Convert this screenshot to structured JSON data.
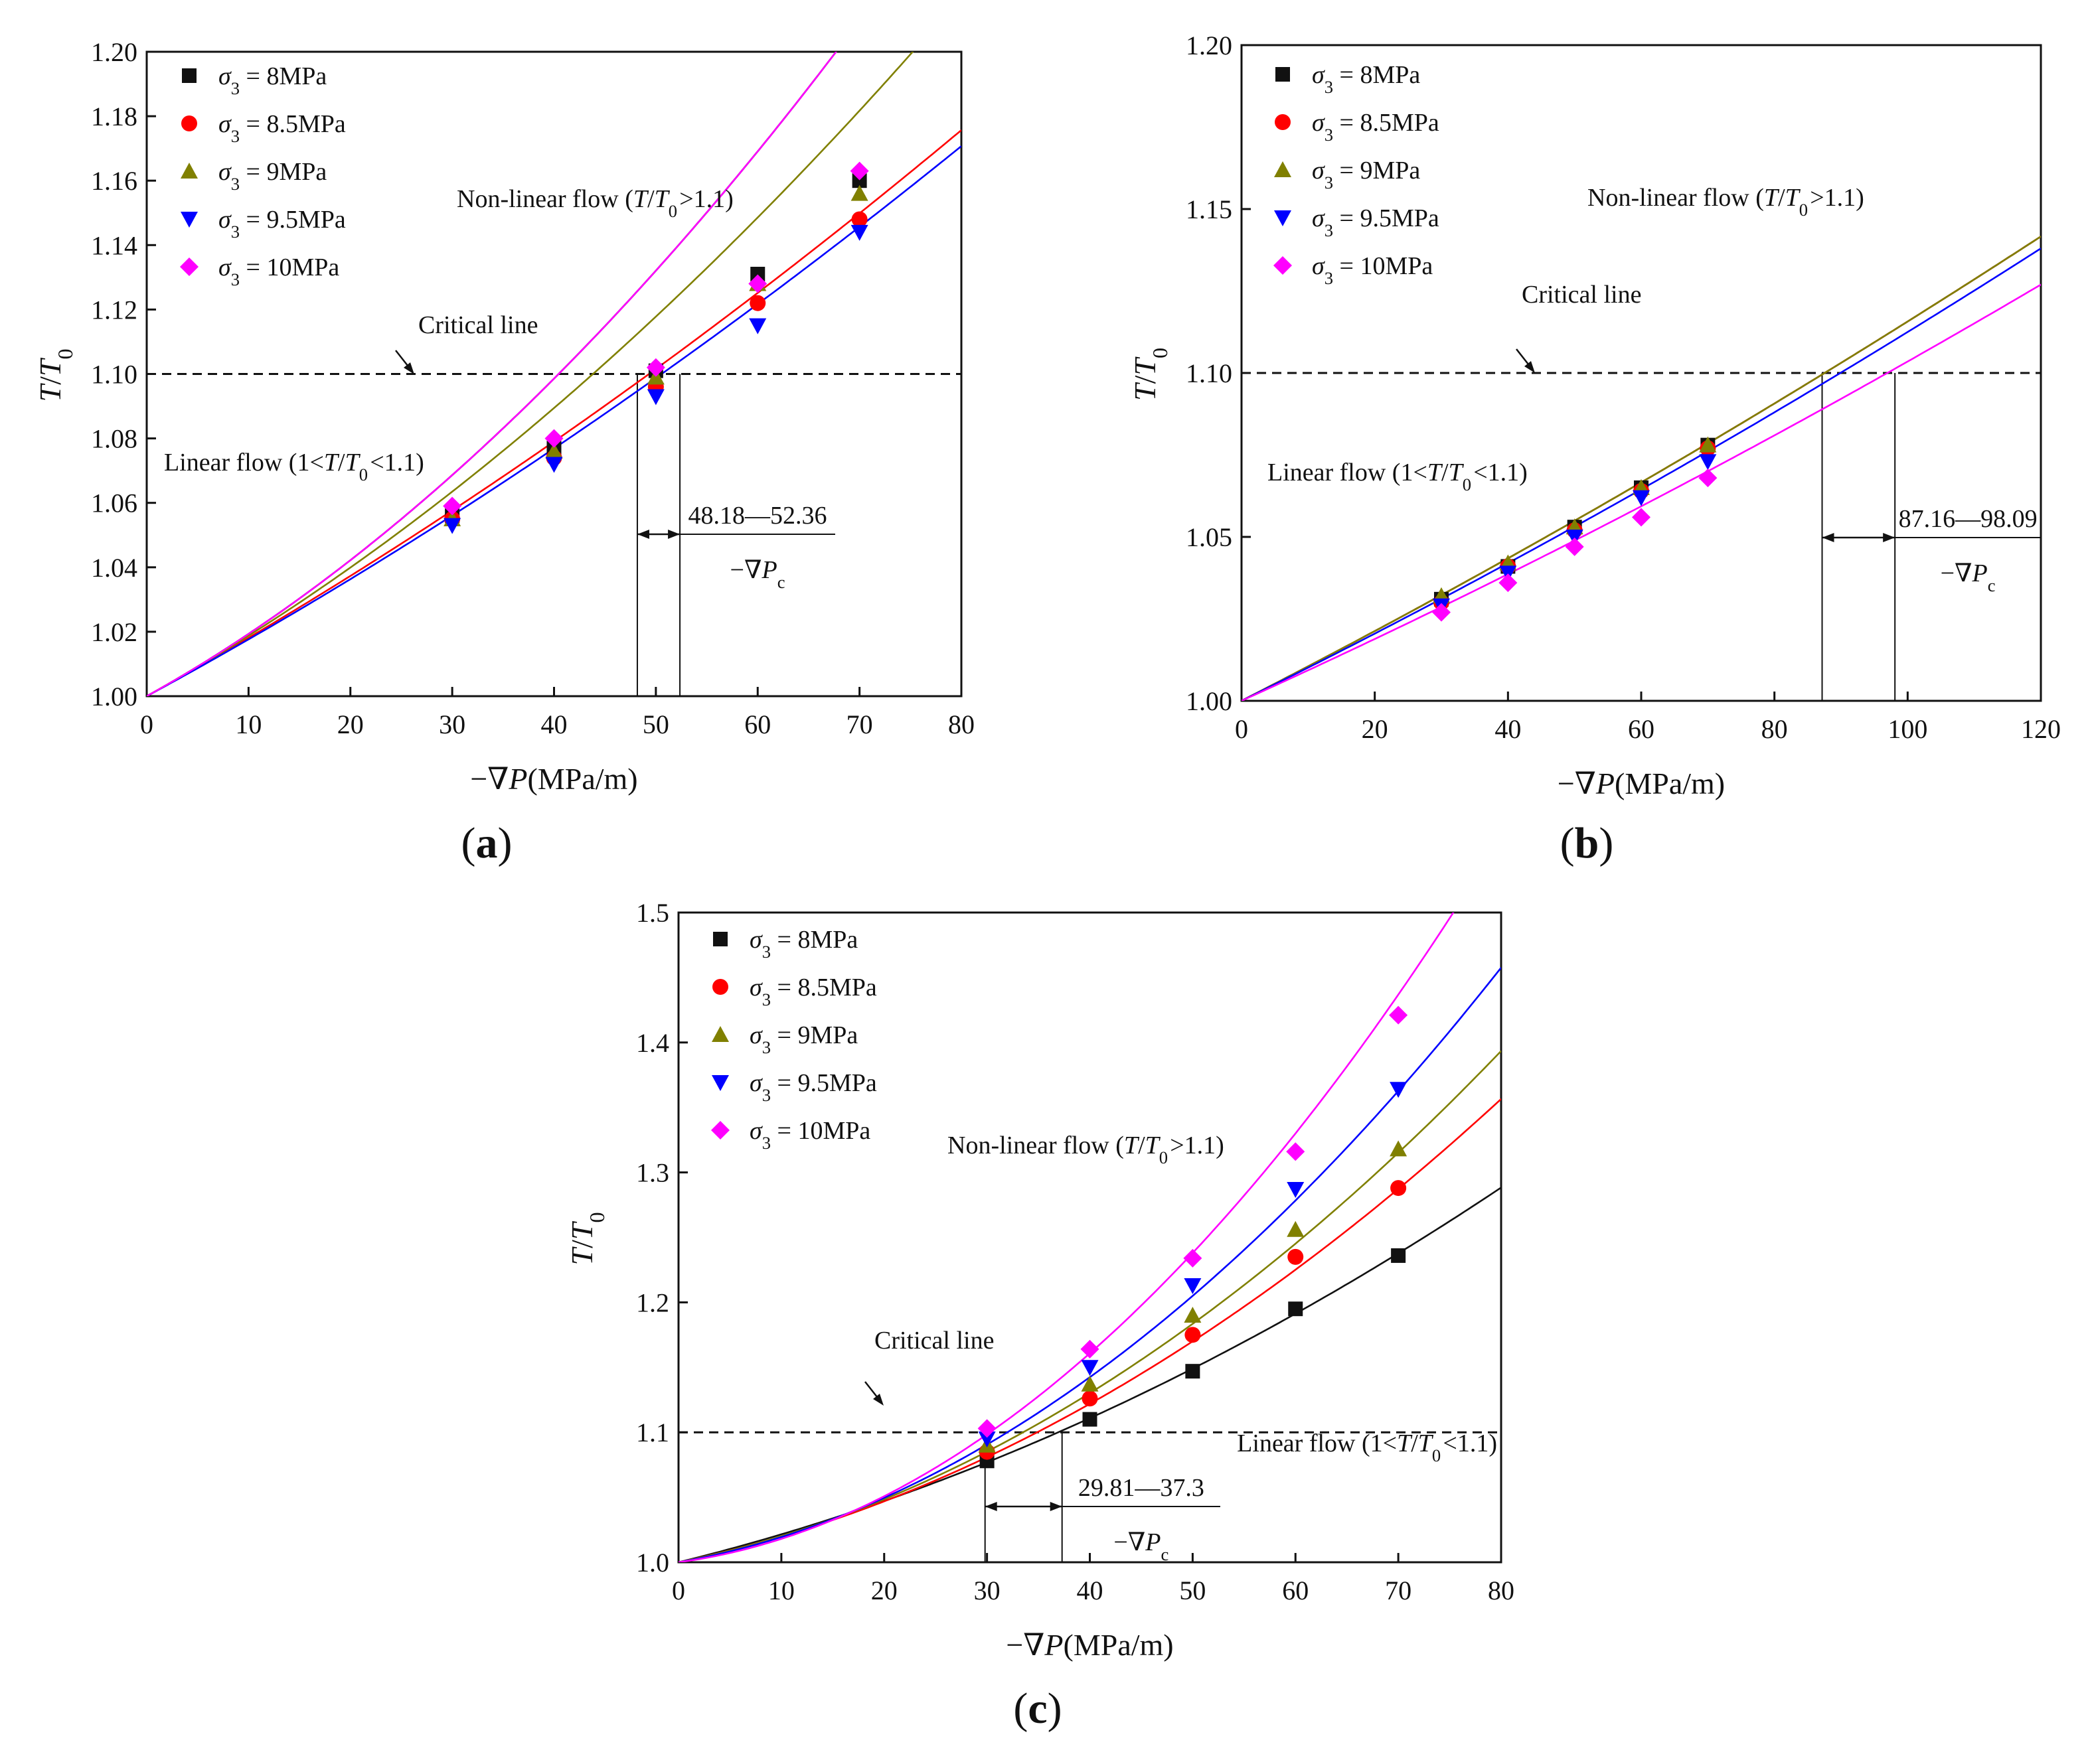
{
  "chart_data": [
    {
      "type": "scatter",
      "panel_label": "(a)",
      "xlabel": "−∇P(MPa/m)",
      "ylabel": "T/T0",
      "xlim": [
        0,
        80
      ],
      "ylim": [
        1.0,
        1.2
      ],
      "x_ticks": [
        "0",
        "10",
        "20",
        "30",
        "40",
        "50",
        "60",
        "70",
        "80"
      ],
      "y_ticks": [
        "1.00",
        "1.02",
        "1.04",
        "1.06",
        "1.08",
        "1.10",
        "1.12",
        "1.14",
        "1.16",
        "1.18",
        "1.20"
      ],
      "x_tick_values": [
        0,
        10,
        20,
        30,
        40,
        50,
        60,
        70,
        80
      ],
      "y_tick_values": [
        1.0,
        1.02,
        1.04,
        1.06,
        1.08,
        1.1,
        1.12,
        1.14,
        1.16,
        1.18,
        1.2
      ],
      "x": [
        30,
        40,
        50,
        60,
        70
      ],
      "series": [
        {
          "name": "σ3 = 8MPa",
          "legend_value": "= 8MPa",
          "marker": "square",
          "color": "#111111",
          "values": [
            1.056,
            1.077,
            1.101,
            1.131,
            1.16
          ],
          "fit_a": 0.001756,
          "fit_b": 1.77e-05
        },
        {
          "name": "σ3 = 8.5MPa",
          "legend_value": "= 8.5MPa",
          "marker": "circle",
          "color": "#ff0000",
          "values": [
            1.055,
            1.074,
            1.096,
            1.122,
            1.148
          ],
          "fit_a": 0.001756,
          "fit_b": 5.5e-06
        },
        {
          "name": "σ3 = 9MPa",
          "legend_value": "= 9MPa",
          "marker": "triangle-up",
          "color": "#808000",
          "values": [
            1.055,
            1.076,
            1.099,
            1.128,
            1.156
          ],
          "fit_a": 0.001756,
          "fit_b": 1.2e-05
        },
        {
          "name": "σ3 = 9.5MPa",
          "legend_value": "= 9.5MPa",
          "marker": "triangle-down",
          "color": "#0000ff",
          "values": [
            1.053,
            1.072,
            1.093,
            1.115,
            1.144
          ],
          "fit_a": 0.00171,
          "fit_b": 5.3e-06
        },
        {
          "name": "σ3 = 10MPa",
          "legend_value": "= 10MPa",
          "marker": "diamond",
          "color": "#ff00ff",
          "values": [
            1.059,
            1.08,
            1.102,
            1.128,
            1.163
          ],
          "fit_a": 0.001756,
          "fit_b": 1.77e-05
        }
      ],
      "critical_y": 1.1,
      "critical_x": [
        48.18,
        52.36
      ],
      "annotations": {
        "critical_line": "Critical line",
        "nonlinear": "Non-linear flow (T/T0>1.1)",
        "linear": "Linear flow (1<T/T0<1.1)",
        "range": "48.18—52.36",
        "grad": "−∇Pc"
      }
    },
    {
      "type": "scatter",
      "panel_label": "(b)",
      "xlabel": "−∇P(MPa/m)",
      "ylabel": "T/T0",
      "xlim": [
        0,
        120
      ],
      "ylim": [
        1.0,
        1.2
      ],
      "x_ticks": [
        "0",
        "20",
        "40",
        "60",
        "80",
        "100",
        "120"
      ],
      "y_ticks": [
        "1.00",
        "1.05",
        "1.10",
        "1.15",
        "1.20"
      ],
      "x_tick_values": [
        0,
        20,
        40,
        60,
        80,
        100,
        120
      ],
      "y_tick_values": [
        1.0,
        1.05,
        1.1,
        1.15,
        1.2
      ],
      "x": [
        30,
        40,
        50,
        60,
        70
      ],
      "series": [
        {
          "name": "σ3 = 8MPa",
          "legend_value": "= 8MPa",
          "marker": "square",
          "color": "#111111",
          "values": [
            1.031,
            1.041,
            1.053,
            1.065,
            1.078
          ],
          "fit_a": 0.00104,
          "fit_b": 1.17e-06
        },
        {
          "name": "σ3 = 8.5MPa",
          "legend_value": "= 8.5MPa",
          "marker": "circle",
          "color": "#ff0000",
          "values": [
            1.03,
            1.041,
            1.052,
            1.064,
            1.077
          ],
          "fit_a": 0.00104,
          "fit_b": 1.17e-06
        },
        {
          "name": "σ3 = 9MPa",
          "legend_value": "= 9MPa",
          "marker": "triangle-up",
          "color": "#808000",
          "values": [
            1.032,
            1.042,
            1.053,
            1.065,
            1.078
          ],
          "fit_a": 0.00104,
          "fit_b": 1.17e-06
        },
        {
          "name": "σ3 = 9.5MPa",
          "legend_value": "= 9.5MPa",
          "marker": "triangle-down",
          "color": "#0000ff",
          "values": [
            1.029,
            1.039,
            1.05,
            1.062,
            1.073
          ],
          "fit_a": 0.001,
          "fit_b": 1.25e-06
        },
        {
          "name": "σ3 = 10MPa",
          "legend_value": "= 10MPa",
          "marker": "diamond",
          "color": "#ff00ff",
          "values": [
            1.027,
            1.036,
            1.047,
            1.056,
            1.068
          ],
          "fit_a": 0.00092,
          "fit_b": 1.15e-06
        }
      ],
      "critical_y": 1.1,
      "critical_x": [
        87.16,
        98.09
      ],
      "annotations": {
        "critical_line": "Critical line",
        "nonlinear": "Non-linear flow (T/T0>1.1)",
        "linear": "Linear flow (1<T/T0<1.1)",
        "range": "87.16—98.09",
        "grad": "−∇Pc"
      }
    },
    {
      "type": "scatter",
      "panel_label": "(c)",
      "xlabel": "−∇P(MPa/m)",
      "ylabel": "T/T0",
      "xlim": [
        0,
        80
      ],
      "ylim": [
        1.0,
        1.5
      ],
      "x_ticks": [
        "0",
        "10",
        "20",
        "30",
        "40",
        "50",
        "60",
        "70",
        "80"
      ],
      "y_ticks": [
        "1.0",
        "1.1",
        "1.2",
        "1.3",
        "1.4",
        "1.5"
      ],
      "x_tick_values": [
        0,
        10,
        20,
        30,
        40,
        50,
        60,
        70,
        80
      ],
      "y_tick_values": [
        1.0,
        1.1,
        1.2,
        1.3,
        1.4,
        1.5
      ],
      "x": [
        30,
        40,
        50,
        60,
        70
      ],
      "series": [
        {
          "name": "σ3 = 8MPa",
          "legend_value": "= 8MPa",
          "marker": "square",
          "color": "#111111",
          "values": [
            1.078,
            1.11,
            1.147,
            1.195,
            1.236
          ],
          "fit_a": 0.00194,
          "fit_b": 2.08e-05
        },
        {
          "name": "σ3 = 8.5MPa",
          "legend_value": "= 8.5MPa",
          "marker": "circle",
          "color": "#ff0000",
          "values": [
            1.085,
            1.126,
            1.175,
            1.235,
            1.288
          ],
          "fit_a": 0.00164,
          "fit_b": 3.52e-05
        },
        {
          "name": "σ3 = 9MPa",
          "legend_value": "= 9MPa",
          "marker": "triangle-up",
          "color": "#808000",
          "values": [
            1.09,
            1.137,
            1.19,
            1.256,
            1.318
          ],
          "fit_a": 0.00159,
          "fit_b": 4.16e-05
        },
        {
          "name": "σ3 = 9.5MPa",
          "legend_value": "= 9.5MPa",
          "marker": "triangle-down",
          "color": "#0000ff",
          "values": [
            1.095,
            1.15,
            1.213,
            1.287,
            1.364
          ],
          "fit_a": 0.0014,
          "fit_b": 5.4e-05
        },
        {
          "name": "σ3 = 10MPa",
          "legend_value": "= 10MPa",
          "marker": "diamond",
          "color": "#ff00ff",
          "values": [
            1.103,
            1.164,
            1.234,
            1.316,
            1.421
          ],
          "fit_a": 0.00106,
          "fit_b": 7.4e-05
        }
      ],
      "critical_y": 1.1,
      "critical_x": [
        29.81,
        37.3
      ],
      "annotations": {
        "critical_line": "Critical line",
        "nonlinear": "Non-linear flow (T/T0>1.1)",
        "linear": "Linear flow (1<T/T0<1.1)",
        "range": "29.81—37.3",
        "grad": "−∇Pc"
      }
    }
  ]
}
